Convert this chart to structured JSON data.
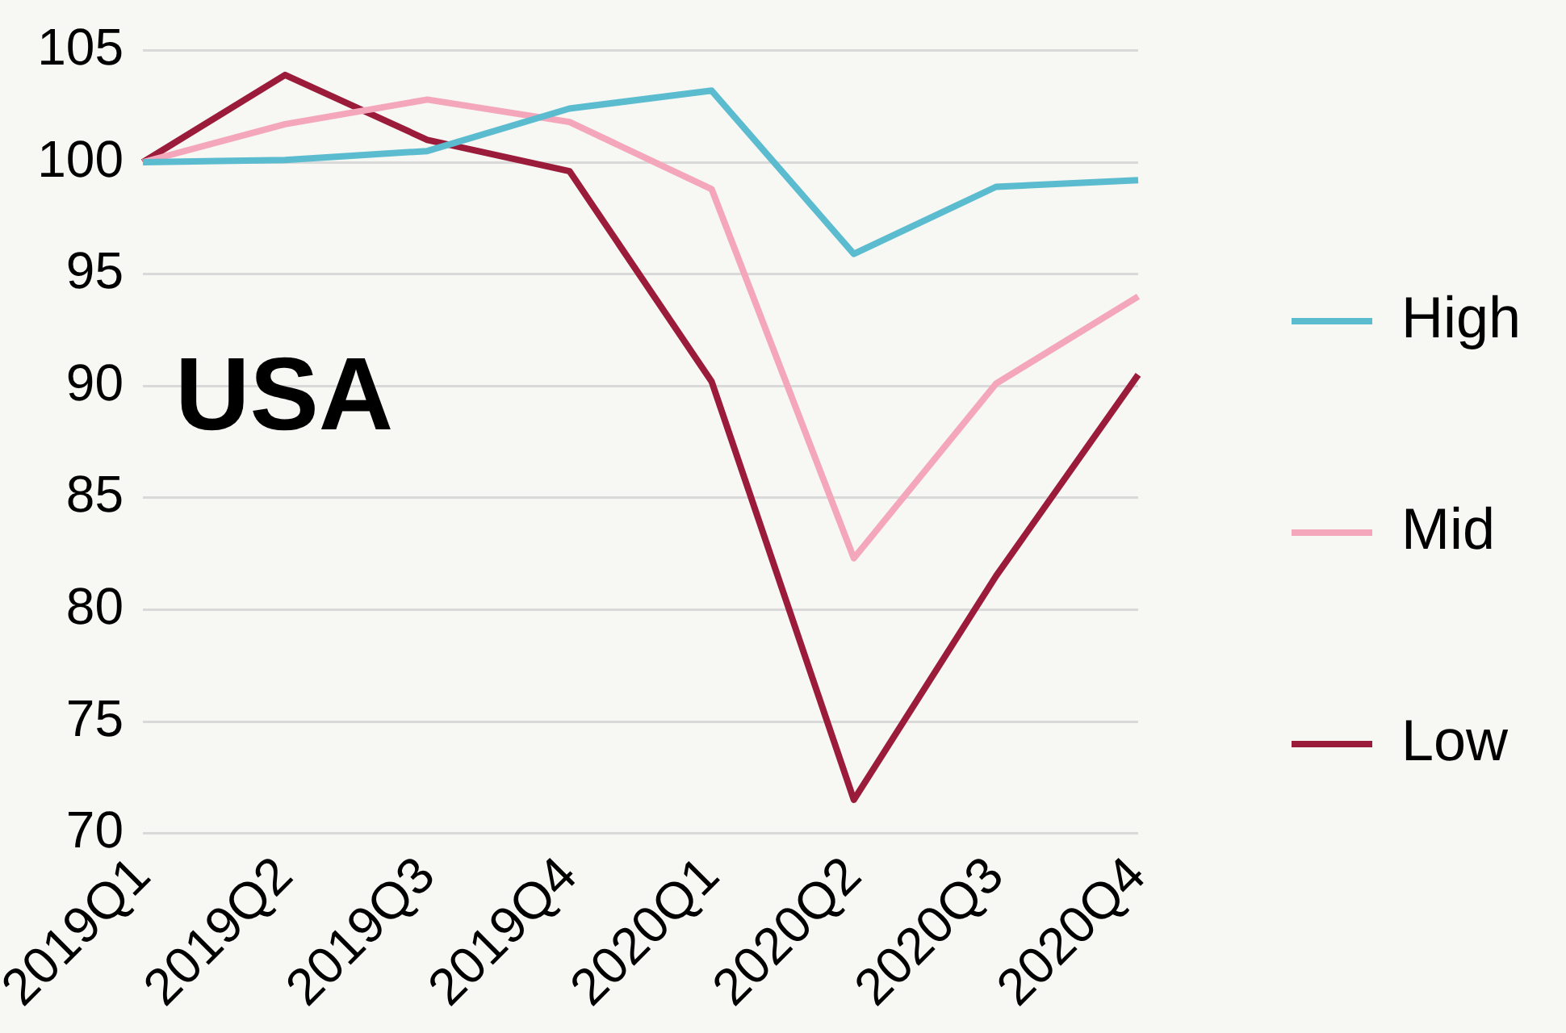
{
  "chart_data": {
    "type": "line",
    "categories": [
      "2019Q1",
      "2019Q2",
      "2019Q3",
      "2019Q4",
      "2020Q1",
      "2020Q2",
      "2020Q3",
      "2020Q4"
    ],
    "series": [
      {
        "name": "High",
        "color": "#5bbccf",
        "values": [
          100,
          100.1,
          100.5,
          102.4,
          103.2,
          95.9,
          98.9,
          99.2
        ]
      },
      {
        "name": "Mid",
        "color": "#f4a7bb",
        "values": [
          100,
          101.7,
          102.8,
          101.8,
          98.8,
          82.3,
          90.1,
          94.0
        ]
      },
      {
        "name": "Low",
        "color": "#9b1b3a",
        "values": [
          100,
          103.9,
          101.0,
          99.6,
          90.2,
          71.5,
          81.5,
          90.5
        ]
      }
    ],
    "ylim": [
      70,
      105
    ],
    "yticks": [
      70,
      75,
      80,
      85,
      90,
      95,
      100,
      105
    ],
    "grid": "y",
    "legend": "right",
    "marker": "none",
    "line_style": "solid",
    "annotations": [
      "USA"
    ]
  }
}
